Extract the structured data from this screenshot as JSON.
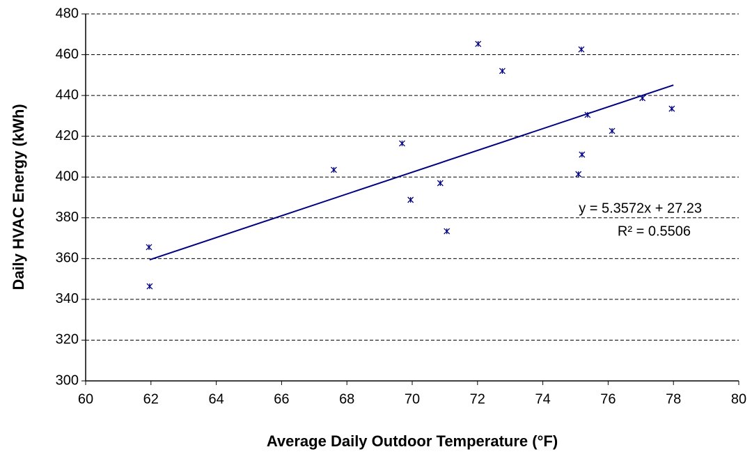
{
  "chart_data": {
    "type": "scatter",
    "x_label": "Average Daily Outdoor Temperature (°F)",
    "y_label": "Daily HVAC Energy (kWh)",
    "xlim": [
      60,
      80
    ],
    "xticks": [
      60,
      62,
      64,
      66,
      68,
      70,
      72,
      74,
      76,
      78,
      80
    ],
    "ylim": [
      300,
      480
    ],
    "yticks": [
      300,
      320,
      340,
      360,
      380,
      400,
      420,
      440,
      460,
      480
    ],
    "grid": true,
    "series": [
      {
        "color": "#000080",
        "x": [
          61.94,
          61.96,
          67.6,
          69.69,
          69.95,
          70.86,
          71.06,
          72.02,
          72.76,
          75.18,
          75.37,
          76.12,
          77.05,
          77.95,
          75.09,
          75.2
        ],
        "values": [
          365.6,
          346.4,
          403.5,
          416.5,
          388.8,
          397.0,
          373.4,
          465.3,
          452.0,
          462.6,
          430.5,
          422.6,
          438.7,
          433.5,
          401.4,
          411.0
        ]
      }
    ],
    "trendline": {
      "color": "#000080",
      "x": [
        61.96,
        78
      ],
      "values": [
        359.4,
        445.1
      ]
    },
    "annotations": [
      "y = 5.3572x + 27.23",
      "R² = 0.5506"
    ]
  }
}
